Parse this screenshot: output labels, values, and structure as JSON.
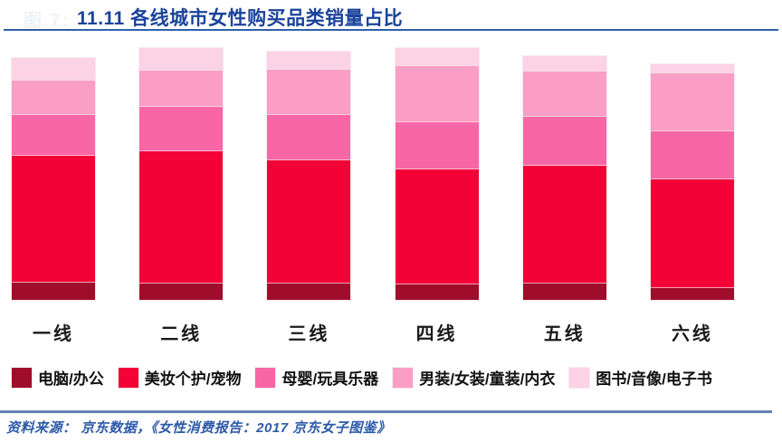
{
  "figure": {
    "watermark": "图 7:",
    "title": "11.11 各线城市女性购买品类销量占比",
    "source": "资料来源： 京东数据，《女性消费报告：2017 京东女子图鉴》",
    "colors": {
      "title_text": "#1A439A",
      "title_rule": "#3060AC",
      "footer_rule": "#6080B2",
      "source_text": "#2D5AA9"
    }
  },
  "chart_data": {
    "type": "bar",
    "subtype": "stacked",
    "title": "11.11 各线城市女性购买品类销量占比",
    "xlabel": "",
    "ylabel": "",
    "unit": "percent-share (estimated, no axis shown)",
    "axis_visible": false,
    "grid": false,
    "legend_position": "bottom",
    "stack_order": "bottom-to-top",
    "categories": [
      "一线",
      "二线",
      "三线",
      "四线",
      "五线",
      "六线"
    ],
    "series": [
      {
        "name": "电脑/办公",
        "color": "#A00D2B",
        "values": [
          6.8,
          6.4,
          6.4,
          6.0,
          6.5,
          4.6
        ]
      },
      {
        "name": "美妆个护/宠物",
        "color": "#F30237",
        "values": [
          50.4,
          52.7,
          48.9,
          45.9,
          46.8,
          43.2
        ]
      },
      {
        "name": "母婴/玩具乐器",
        "color": "#F966A6",
        "values": [
          16.2,
          17.4,
          18.2,
          18.5,
          19.2,
          19.2
        ]
      },
      {
        "name": "男装/女装/童装/内衣",
        "color": "#FA9EC5",
        "values": [
          13.7,
          14.7,
          18.0,
          22.3,
          18.3,
          22.8
        ]
      },
      {
        "name": "图书/音像/电子书",
        "color": "#FCD2E5",
        "values": [
          9.0,
          8.9,
          7.2,
          7.2,
          6.0,
          3.8
        ]
      }
    ]
  }
}
